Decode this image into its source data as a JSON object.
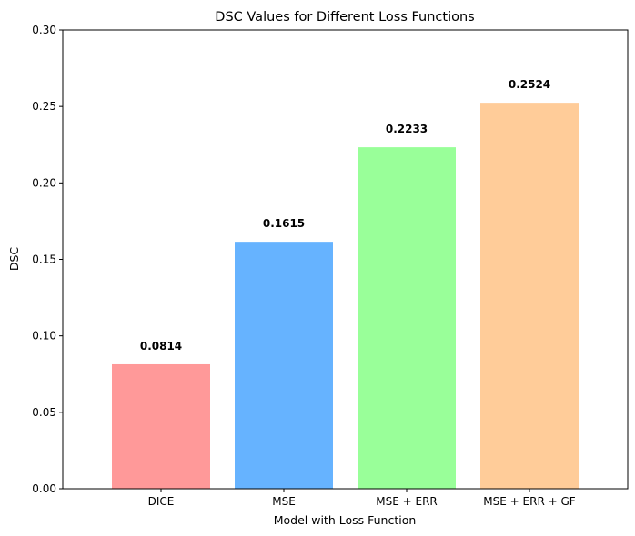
{
  "chart_data": {
    "type": "bar",
    "title": "DSC Values for Different Loss Functions",
    "xlabel": "Model with Loss Function",
    "ylabel": "DSC",
    "categories": [
      "DICE",
      "MSE",
      "MSE + ERR",
      "MSE + ERR + GF"
    ],
    "values": [
      0.0814,
      0.1615,
      0.2233,
      0.2524
    ],
    "value_labels": [
      "0.0814",
      "0.1615",
      "0.2233",
      "0.2524"
    ],
    "colors": [
      "#ff9999",
      "#66b3ff",
      "#99ff99",
      "#ffcc99"
    ],
    "ylim": [
      0,
      0.3
    ],
    "yticks": [
      0.0,
      0.05,
      0.1,
      0.15,
      0.2,
      0.25,
      0.3
    ],
    "ytick_labels": [
      "0.00",
      "0.05",
      "0.10",
      "0.15",
      "0.20",
      "0.25",
      "0.30"
    ],
    "grid": false,
    "legend": "none"
  }
}
